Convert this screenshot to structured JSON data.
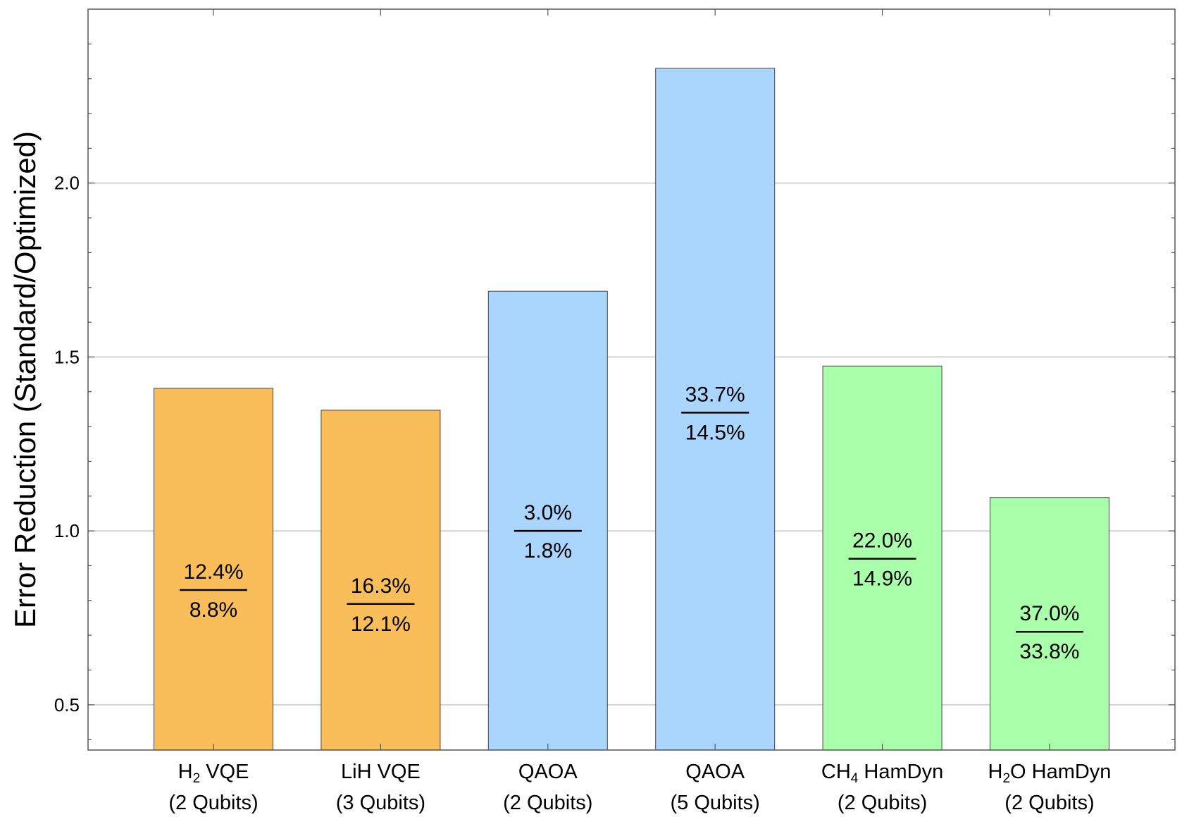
{
  "chart_data": {
    "type": "bar",
    "ylabel": "Error Reduction  (Standard/Optimized)",
    "ylim": [
      0.37,
      2.5
    ],
    "yticks": [
      0.5,
      1.0,
      1.5,
      2.0
    ],
    "ytick_labels": [
      "0.5",
      "1.0",
      "1.5",
      "2.0"
    ],
    "grid": "horizontal",
    "categories": [
      {
        "line1": "H",
        "sub": "2",
        "line1_rest": " VQE",
        "line2": "(2 Qubits)"
      },
      {
        "line1": "LiH VQE",
        "sub": "",
        "line1_rest": "",
        "line2": "(3 Qubits)"
      },
      {
        "line1": "QAOA",
        "sub": "",
        "line1_rest": "",
        "line2": "(2 Qubits)"
      },
      {
        "line1": "QAOA",
        "sub": "",
        "line1_rest": "",
        "line2": "(5 Qubits)"
      },
      {
        "line1": "CH",
        "sub": "4",
        "line1_rest": " HamDyn",
        "line2": "(2 Qubits)"
      },
      {
        "line1": "H",
        "sub": "2",
        "line1_rest": "O HamDyn",
        "line2": "(2 Qubits)"
      }
    ],
    "values": [
      1.41,
      1.347,
      1.689,
      2.33,
      1.474,
      1.096
    ],
    "standard_error": [
      "12.4%",
      "16.3%",
      "3.0%",
      "33.7%",
      "22.0%",
      "37.0%"
    ],
    "optimized_error": [
      "8.8%",
      "12.1%",
      "1.8%",
      "14.5%",
      "14.9%",
      "33.8%"
    ],
    "colors": [
      "#f9bd5a",
      "#f9bd5a",
      "#aad5fd",
      "#aad5fd",
      "#aaffaa",
      "#aaffaa"
    ],
    "label_value_positions": [
      0.83,
      0.79,
      1.0,
      1.34,
      0.92,
      0.71
    ]
  }
}
